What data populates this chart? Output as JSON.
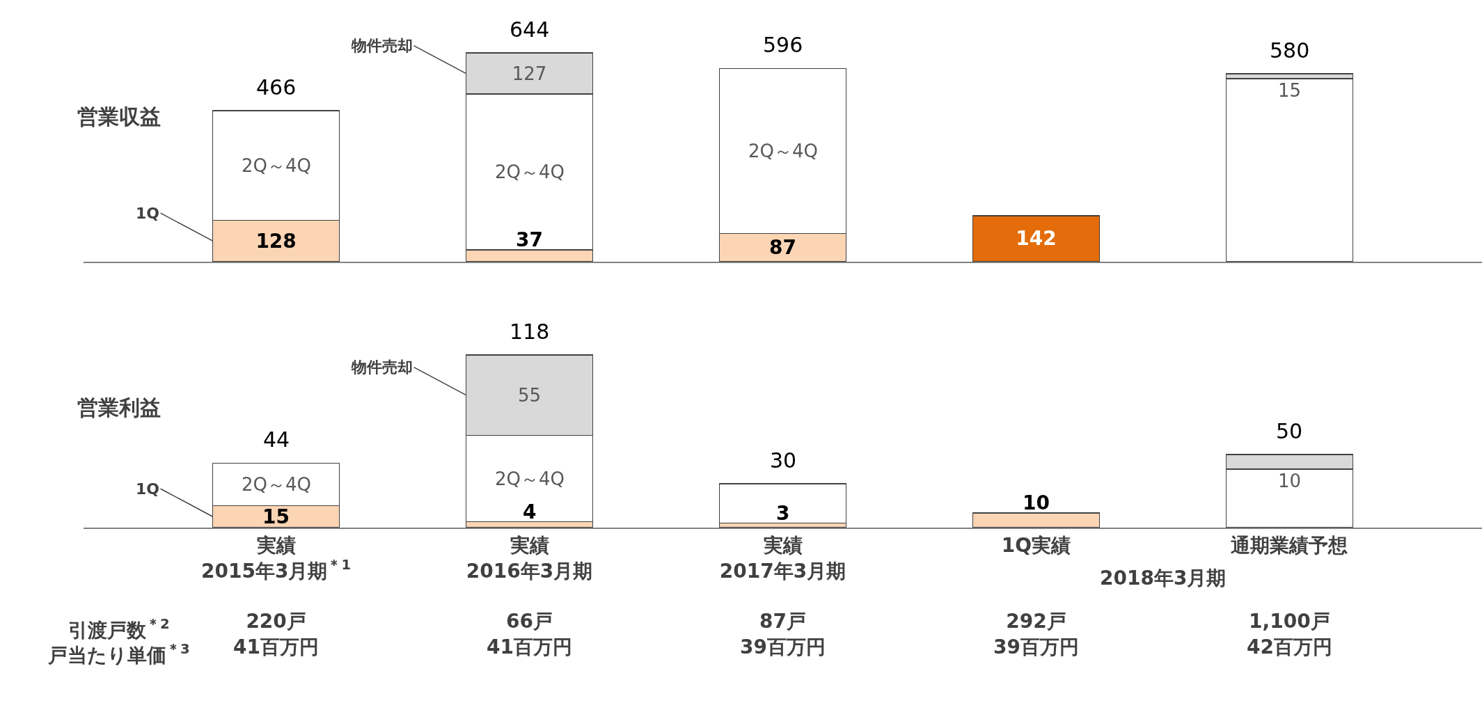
{
  "chart_data": [
    {
      "type": "bar",
      "stacked": true,
      "ylabel": "営業収益",
      "tick_labels": false,
      "legend": false,
      "grid": false,
      "categories": [
        null,
        null,
        null,
        null,
        null
      ],
      "series": [
        {
          "name": "1Q",
          "color": "#fcd5b5",
          "colors": [
            "#fcd5b5",
            "#fcd5b5",
            "#fcd5b5",
            "#e46c0a",
            null
          ],
          "values": [
            128,
            37,
            87,
            142,
            null
          ],
          "value_labels": [
            "128",
            "37",
            "87",
            "142",
            null
          ]
        },
        {
          "color": "#ffffff",
          "values": [
            338,
            480,
            509,
            null,
            565
          ]
        },
        {
          "name": "物件売却",
          "color": "#d9d9d9",
          "values": [
            null,
            127,
            null,
            null,
            15
          ],
          "value_labels": [
            null,
            "127",
            null,
            null,
            "15"
          ]
        }
      ],
      "totals": [
        "466",
        "644",
        "596",
        null,
        "580"
      ],
      "annotations": [
        "2Q～4Q",
        "2Q～4Q",
        "2Q～4Q"
      ]
    },
    {
      "type": "bar",
      "stacked": true,
      "ylabel": "営業利益",
      "tick_labels": "x",
      "legend": false,
      "grid": false,
      "categories": [
        "実績\n2015年3月期$^{＊1}$\n\n220戸\n41百万円",
        "実績\n2016年3月期\n\n66戸\n41百万円",
        "実績\n2017年3月期\n\n87戸\n39百万円",
        "1Q実績\n\n\n292戸\n39百万円",
        "通期業績予想\n\n\n1,100戸\n42百万円"
      ],
      "series": [
        {
          "name": "1Q",
          "color": "#fcd5b5",
          "values": [
            15,
            4,
            3,
            10,
            null
          ],
          "value_labels": [
            "15",
            "4",
            "3",
            "10",
            null
          ]
        },
        {
          "color": "#ffffff",
          "values": [
            29,
            59,
            27,
            null,
            40
          ]
        },
        {
          "name": "物件売却",
          "color": "#d9d9d9",
          "values": [
            null,
            55,
            null,
            null,
            10
          ],
          "value_labels": [
            null,
            "55",
            null,
            null,
            "10"
          ]
        }
      ],
      "totals": [
        "44",
        "118",
        "30",
        null,
        "50"
      ],
      "annotations": [
        "2Q～4Q",
        "2Q～4Q",
        "2018年3月期",
        "引渡戸数$^{＊2}$",
        "戸当たり単価$^{＊3}$"
      ]
    }
  ]
}
